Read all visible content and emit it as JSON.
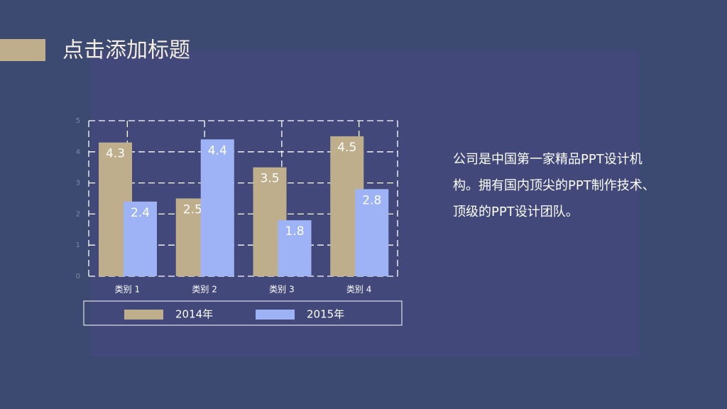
{
  "slide": {
    "title": "点击添加标题",
    "text": "公司是中国第一家精品PPT设计机构。拥有国内顶尖的PPT制作技术、顶级的PPT设计团队。"
  },
  "chart_data": {
    "type": "bar",
    "categories": [
      "类别 1",
      "类别 2",
      "类别 3",
      "类别 4"
    ],
    "series": [
      {
        "name": "2014年",
        "color": "#bfae8c",
        "values": [
          4.3,
          2.5,
          3.5,
          4.5
        ]
      },
      {
        "name": "2015年",
        "color": "#9db3f5",
        "values": [
          2.4,
          4.4,
          1.8,
          2.8
        ]
      }
    ],
    "ylim": [
      0,
      5
    ],
    "yticks": [
      0,
      1,
      2,
      3,
      4,
      5
    ],
    "grid": true,
    "legend": "bottom"
  }
}
